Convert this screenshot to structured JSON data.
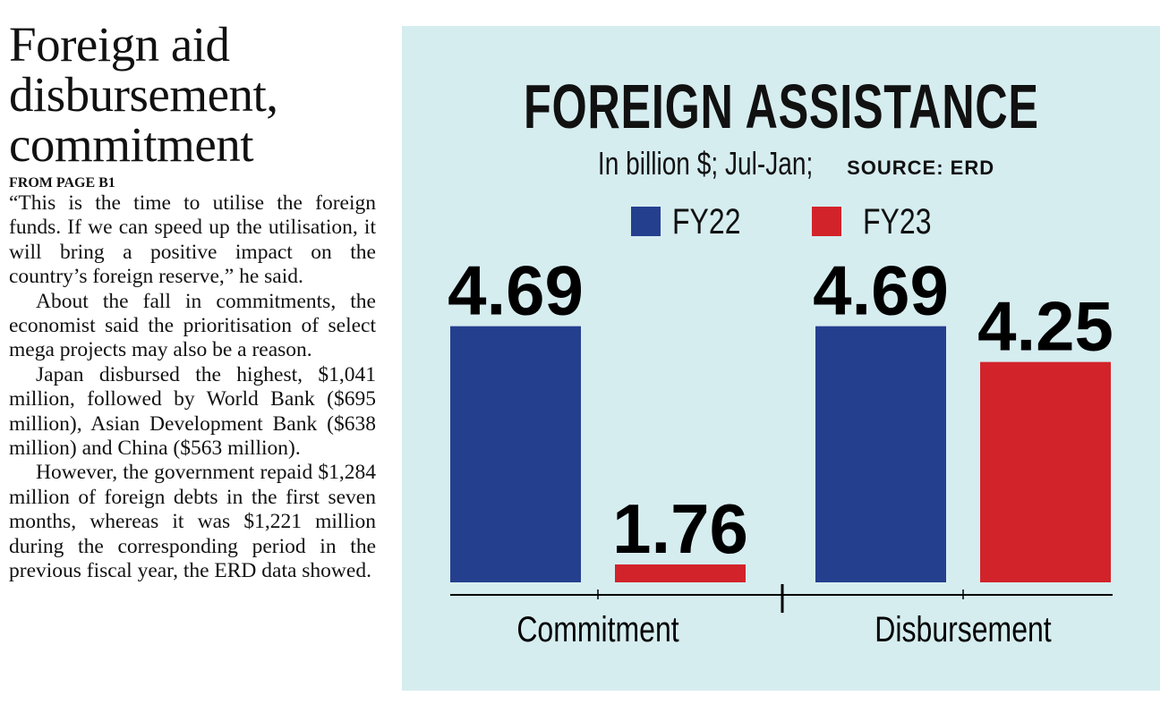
{
  "article": {
    "headline": [
      "Foreign aid",
      "disbursement,",
      "commitment"
    ],
    "from_page": "FROM PAGE B1",
    "paragraphs": [
      "“This is the time to utilise the foreign funds. If we can speed up the utilisation, it will bring a positive impact on the country’s foreign reserve,” he said.",
      "About the fall in commitments, the economist said the prioritisation of select mega projects may also be a reason.",
      "Japan disbursed the highest, $1,041 million, followed by World Bank ($695 million), Asian Development Bank ($638 million) and China ($563 million).",
      "However, the government repaid $1,284 million of foreign debts in the first seven months, whereas it was $1,221 million during the corresponding period in the previous fiscal year, the ERD data showed."
    ]
  },
  "chart_data": {
    "type": "bar",
    "title": "FOREIGN ASSISTANCE",
    "subtitle": "In billion $; Jul-Jan;",
    "source": "SOURCE: ERD",
    "categories": [
      "Commitment",
      "Disbursement"
    ],
    "series": [
      {
        "name": "FY22",
        "values": [
          4.69,
          4.69
        ],
        "color": "#253f8f"
      },
      {
        "name": "FY23",
        "values": [
          1.76,
          4.25
        ],
        "color": "#d2232a"
      }
    ],
    "data_labels": [
      [
        "4.69",
        "4.69"
      ],
      [
        "1.76",
        "4.25"
      ]
    ],
    "ylim": [
      1.54,
      4.69
    ],
    "grid": false,
    "legend": "top-center",
    "background": "#d6edf0"
  }
}
